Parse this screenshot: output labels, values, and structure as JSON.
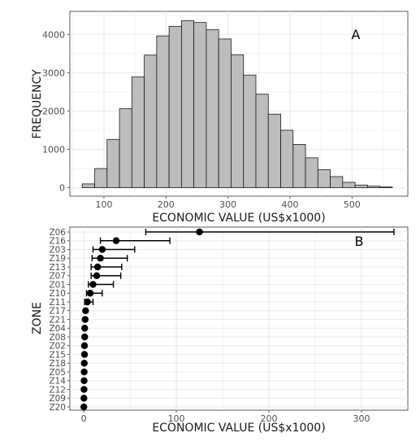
{
  "chart_data": [
    {
      "type": "bar",
      "panel_label": "A",
      "xlabel": "ECONOMIC VALUE (US$x1000)",
      "ylabel": "FREQUENCY",
      "bins_start": [
        65,
        85,
        105,
        125,
        145,
        165,
        185,
        205,
        225,
        245,
        265,
        285,
        305,
        325,
        345,
        365,
        385,
        405,
        425,
        445,
        465,
        485,
        505,
        525,
        545
      ],
      "bin_width": 20,
      "values": [
        100,
        500,
        1260,
        2060,
        2890,
        3460,
        3960,
        4210,
        4360,
        4310,
        4120,
        3880,
        3470,
        2940,
        2440,
        1920,
        1500,
        1130,
        780,
        470,
        290,
        140,
        70,
        40,
        20
      ],
      "xlim": [
        45,
        590
      ],
      "ylim": [
        -220,
        4600
      ],
      "xticks": [
        100,
        200,
        300,
        400,
        500
      ],
      "yticks": [
        0,
        1000,
        2000,
        3000,
        4000
      ],
      "grid": true,
      "colors": {
        "bar_fill": "#bdbdbd",
        "bar_stroke": "#1a1a1a",
        "grid": "#ebebeb"
      }
    },
    {
      "type": "scatter",
      "panel_label": "B",
      "xlabel": "ECONOMIC VALUE (US$x1000)",
      "ylabel": "ZONE",
      "categories": [
        "Z06",
        "Z16",
        "Z03",
        "Z19",
        "Z13",
        "Z07",
        "Z01",
        "Z10",
        "Z11",
        "Z17",
        "Z21",
        "Z04",
        "Z08",
        "Z02",
        "Z15",
        "Z18",
        "Z05",
        "Z14",
        "Z12",
        "Z09",
        "Z20"
      ],
      "values": [
        125,
        35,
        20,
        18,
        15,
        14,
        10,
        7,
        4,
        2,
        1.5,
        1,
        1,
        0.8,
        0.8,
        0.6,
        0.5,
        0.4,
        0.3,
        0.2,
        0.1
      ],
      "error_low": [
        67,
        18,
        10,
        9,
        8,
        8,
        5,
        3,
        1,
        null,
        null,
        null,
        null,
        null,
        null,
        null,
        null,
        null,
        null,
        null,
        null
      ],
      "error_high": [
        335,
        93,
        55,
        47,
        41,
        40,
        32,
        20,
        10,
        null,
        null,
        null,
        null,
        null,
        null,
        null,
        null,
        null,
        null,
        null,
        null
      ],
      "xlim": [
        -15,
        350
      ],
      "xticks": [
        0,
        100,
        200,
        300
      ],
      "grid": true,
      "colors": {
        "point": "#000000",
        "grid": "#ebebeb"
      }
    }
  ]
}
